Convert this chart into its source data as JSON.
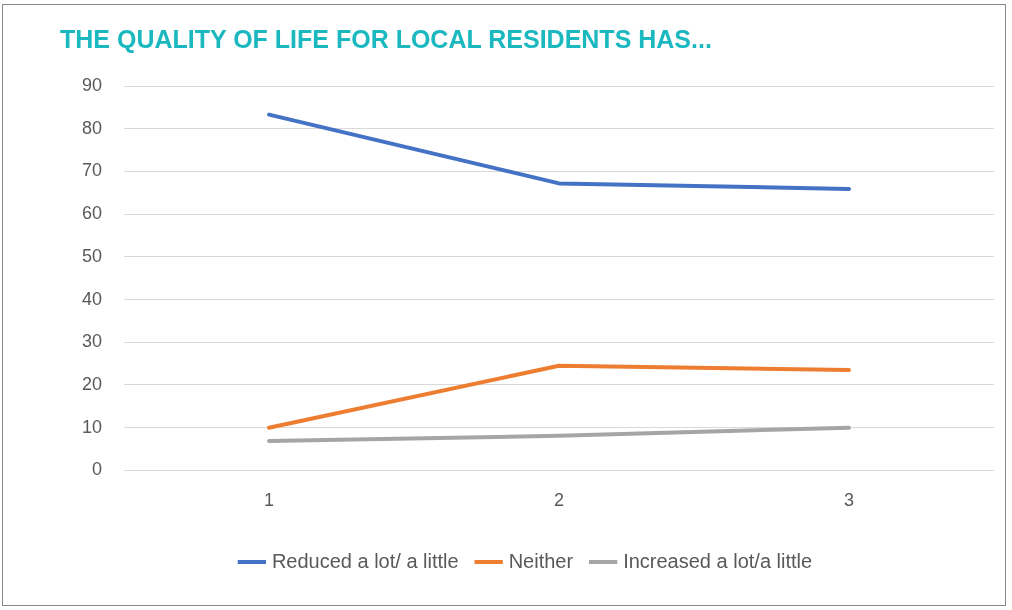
{
  "chart_data": {
    "type": "line",
    "title": "THE QUALITY OF LIFE FOR LOCAL RESIDENTS HAS...",
    "categories": [
      "1",
      "2",
      "3"
    ],
    "series": [
      {
        "name": "Reduced a lot/ a little",
        "color": "#4472c4",
        "values": [
          83.3,
          67.2,
          65.9
        ]
      },
      {
        "name": "Neither",
        "color": "#ed7d31",
        "values": [
          10,
          24.5,
          23.5
        ]
      },
      {
        "name": "Increased a lot/a little",
        "color": "#a5a5a5",
        "values": [
          6.9,
          8.1,
          10
        ]
      }
    ],
    "ylim": [
      0,
      90
    ],
    "yticks": [
      0,
      10,
      20,
      30,
      40,
      50,
      60,
      70,
      80,
      90
    ],
    "grid": "y",
    "legend": "bottom",
    "marker": "none",
    "line_style": "solid"
  }
}
